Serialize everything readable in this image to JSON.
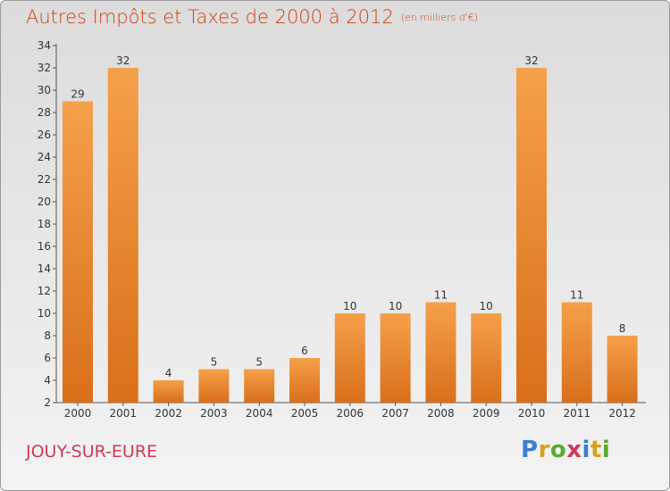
{
  "header": {
    "title": "Autres Impôts et Taxes de 2000 à 2012",
    "subtitle": "(en milliers d'€)"
  },
  "footer": {
    "commune": "JOUY-SUR-EURE",
    "logo": {
      "letters": [
        "P",
        "r",
        "o",
        "x",
        "i",
        "t",
        "i"
      ],
      "colors": [
        "#3a7fd0",
        "#d8a020",
        "#5aaa30",
        "#d03a5a",
        "#3a7fd0",
        "#d8a020",
        "#5aaa30"
      ]
    }
  },
  "colors": {
    "bar_light": "#f5a04a",
    "bar_dark": "#d96f1b",
    "title": "#d04010",
    "commune": "#cc3a55"
  },
  "chart_data": {
    "type": "bar",
    "title": "Autres Impôts et Taxes de 2000 à 2012",
    "xlabel": "",
    "ylabel": "",
    "categories": [
      "2000",
      "2001",
      "2002",
      "2003",
      "2004",
      "2005",
      "2006",
      "2007",
      "2008",
      "2009",
      "2010",
      "2011",
      "2012"
    ],
    "values": [
      29,
      32,
      4,
      5,
      5,
      6,
      10,
      10,
      11,
      10,
      32,
      11,
      8
    ],
    "ylim": [
      2,
      34
    ],
    "yticks": [
      2,
      4,
      6,
      8,
      10,
      12,
      14,
      16,
      18,
      20,
      22,
      24,
      26,
      28,
      30,
      32,
      34
    ],
    "grid": false,
    "data_labels": true
  }
}
